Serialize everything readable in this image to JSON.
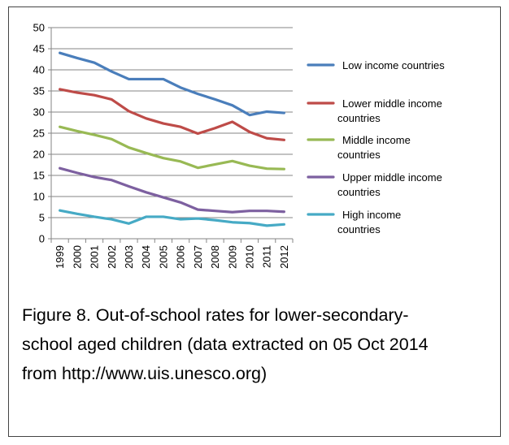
{
  "chart_data": {
    "type": "line",
    "x": [
      "1999",
      "2000",
      "2001",
      "2002",
      "2003",
      "2004",
      "2005",
      "2006",
      "2007",
      "2008",
      "2009",
      "2010",
      "2011",
      "2012"
    ],
    "ylim": [
      0,
      50
    ],
    "yticks": [
      0,
      5,
      10,
      15,
      20,
      25,
      30,
      35,
      40,
      45,
      50
    ],
    "grid": true,
    "legend": "right",
    "series": [
      {
        "name": "Low income countries",
        "legend_lines": [
          "Low income countries"
        ],
        "color": "#4a7ebb",
        "values": [
          44.0,
          42.8,
          41.7,
          39.6,
          37.8,
          37.8,
          37.8,
          35.8,
          34.3,
          33.0,
          31.6,
          29.3,
          30.1,
          29.8
        ]
      },
      {
        "name": "Lower middle income countries",
        "legend_lines": [
          "Lower middle income",
          "countries"
        ],
        "color": "#be4b48",
        "values": [
          35.4,
          34.6,
          34.0,
          33.0,
          30.2,
          28.5,
          27.3,
          26.5,
          24.9,
          26.2,
          27.7,
          25.3,
          23.8,
          23.4
        ]
      },
      {
        "name": "Middle income countries",
        "legend_lines": [
          "Middle income",
          "countries"
        ],
        "color": "#98b954",
        "values": [
          26.5,
          25.5,
          24.6,
          23.6,
          21.6,
          20.3,
          19.1,
          18.3,
          16.8,
          17.6,
          18.4,
          17.3,
          16.6,
          16.5
        ]
      },
      {
        "name": "Upper middle income countries",
        "legend_lines": [
          "Upper middle income",
          "countries"
        ],
        "color": "#7d60a0",
        "values": [
          16.7,
          15.6,
          14.6,
          13.9,
          12.4,
          11.0,
          9.8,
          8.6,
          6.9,
          6.6,
          6.3,
          6.6,
          6.6,
          6.4
        ]
      },
      {
        "name": "High income countries",
        "legend_lines": [
          "High income",
          "countries"
        ],
        "color": "#46aac5",
        "values": [
          6.7,
          5.9,
          5.2,
          4.6,
          3.6,
          5.2,
          5.2,
          4.6,
          4.8,
          4.4,
          3.9,
          3.7,
          3.1,
          3.4
        ]
      }
    ]
  },
  "caption": {
    "line1": "Figure 8.  Out-of-school rates for lower-secondary-",
    "line2": "school aged children (data extracted on 05 Oct 2014",
    "line3": "from  http://www.uis.unesco.org)"
  }
}
